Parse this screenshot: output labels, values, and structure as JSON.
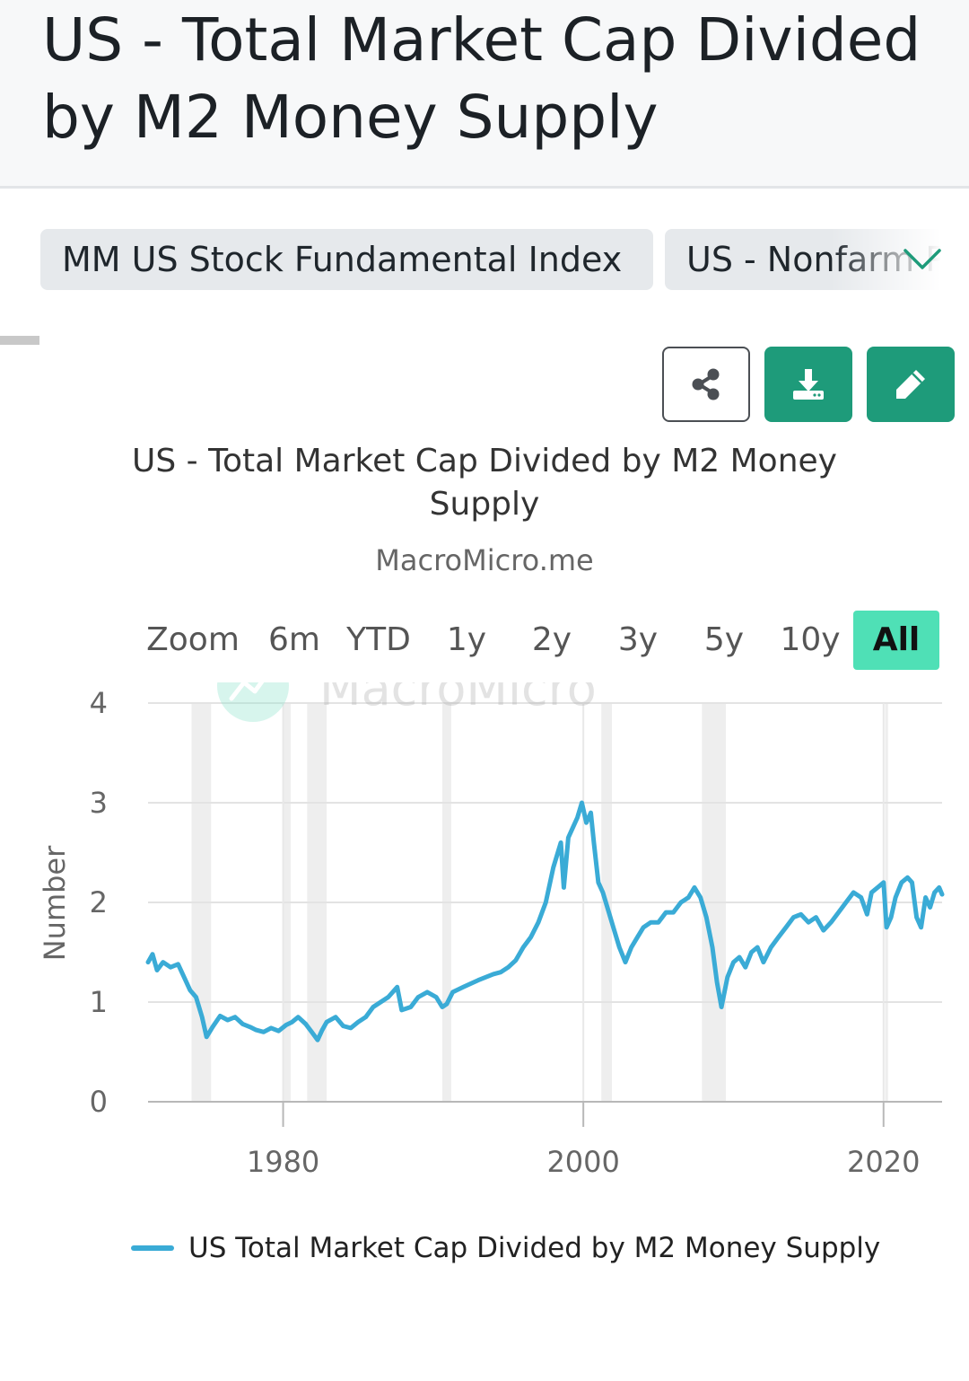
{
  "header": {
    "title": "US - Total Market Cap Divided by M2 Money Supply"
  },
  "tabs": [
    {
      "label": "MM US Stock Fundamental Index"
    },
    {
      "label": "US - Nonfarm Payrolls"
    }
  ],
  "toolbar": {
    "share_icon": "share-icon",
    "download_icon": "download-icon",
    "edit_icon": "edit-icon",
    "accent_color": "#1e9b7a"
  },
  "range_selector": {
    "zoom_label": "Zoom",
    "options": [
      "6m",
      "YTD",
      "1y",
      "2y",
      "3y",
      "5y",
      "10y",
      "All"
    ],
    "active": "All",
    "active_color": "#4fe0b6"
  },
  "watermark": "MacroMicro",
  "chart_data": {
    "type": "line",
    "title": "US - Total Market Cap Divided by M2 Money Supply",
    "subtitle": "MacroMicro.me",
    "xlabel": "",
    "ylabel": "Number",
    "xlim": [
      1971.0,
      2023.9
    ],
    "ylim": [
      0,
      4
    ],
    "y_ticks": [
      0,
      1,
      2,
      3,
      4
    ],
    "x_ticks": [
      1980,
      2000,
      2020
    ],
    "grid": true,
    "line_color": "#3aabd6",
    "recession_color": "#eeeeee",
    "recession_bands": [
      [
        1973.9,
        1975.2
      ],
      [
        1980.0,
        1980.5
      ],
      [
        1981.6,
        1982.9
      ],
      [
        1990.6,
        1991.2
      ],
      [
        2001.2,
        2001.9
      ],
      [
        2007.9,
        2009.5
      ],
      [
        2020.1,
        2020.3
      ]
    ],
    "series": [
      {
        "name": "US Total Market Cap Divided by M2 Money Supply",
        "x": [
          1971.0,
          1971.3,
          1971.6,
          1972.0,
          1972.5,
          1973.0,
          1973.4,
          1973.8,
          1974.2,
          1974.6,
          1974.9,
          1975.3,
          1975.8,
          1976.3,
          1976.8,
          1977.3,
          1977.8,
          1978.2,
          1978.7,
          1979.2,
          1979.7,
          1980.2,
          1980.6,
          1981.0,
          1981.5,
          1981.9,
          1982.3,
          1982.6,
          1982.9,
          1983.5,
          1984.0,
          1984.5,
          1985.0,
          1985.5,
          1986.0,
          1986.5,
          1987.0,
          1987.6,
          1987.9,
          1988.5,
          1989.0,
          1989.6,
          1990.2,
          1990.6,
          1990.9,
          1991.3,
          1992.0,
          1993.0,
          1994.0,
          1994.5,
          1995.0,
          1995.5,
          1996.0,
          1996.5,
          1997.0,
          1997.5,
          1998.0,
          1998.5,
          1998.7,
          1999.0,
          1999.3,
          1999.6,
          1999.9,
          2000.2,
          2000.5,
          2000.7,
          2001.0,
          2001.3,
          2001.7,
          2002.0,
          2002.4,
          2002.8,
          2003.2,
          2003.6,
          2004.0,
          2004.5,
          2005.0,
          2005.5,
          2006.0,
          2006.5,
          2007.0,
          2007.4,
          2007.8,
          2008.2,
          2008.6,
          2008.9,
          2009.2,
          2009.6,
          2010.0,
          2010.4,
          2010.8,
          2011.2,
          2011.6,
          2012.0,
          2012.5,
          2013.0,
          2013.5,
          2014.0,
          2014.5,
          2015.0,
          2015.5,
          2016.0,
          2016.5,
          2017.0,
          2017.5,
          2018.0,
          2018.5,
          2018.9,
          2019.2,
          2019.6,
          2020.0,
          2020.2,
          2020.5,
          2020.8,
          2021.2,
          2021.6,
          2021.9,
          2022.2,
          2022.5,
          2022.8,
          2023.1,
          2023.4,
          2023.7,
          2023.9
        ],
        "values": [
          1.4,
          1.48,
          1.32,
          1.4,
          1.35,
          1.38,
          1.25,
          1.12,
          1.05,
          0.85,
          0.65,
          0.75,
          0.86,
          0.82,
          0.85,
          0.78,
          0.75,
          0.72,
          0.7,
          0.74,
          0.71,
          0.77,
          0.8,
          0.85,
          0.78,
          0.7,
          0.62,
          0.72,
          0.8,
          0.85,
          0.76,
          0.74,
          0.8,
          0.85,
          0.95,
          1.0,
          1.05,
          1.15,
          0.92,
          0.95,
          1.05,
          1.1,
          1.05,
          0.95,
          0.98,
          1.1,
          1.15,
          1.22,
          1.28,
          1.3,
          1.35,
          1.42,
          1.55,
          1.65,
          1.8,
          2.0,
          2.35,
          2.6,
          2.15,
          2.65,
          2.75,
          2.85,
          3.0,
          2.8,
          2.9,
          2.6,
          2.2,
          2.1,
          1.9,
          1.75,
          1.55,
          1.4,
          1.55,
          1.65,
          1.75,
          1.8,
          1.8,
          1.9,
          1.9,
          2.0,
          2.05,
          2.15,
          2.05,
          1.85,
          1.55,
          1.2,
          0.95,
          1.25,
          1.4,
          1.45,
          1.35,
          1.5,
          1.55,
          1.4,
          1.55,
          1.65,
          1.75,
          1.85,
          1.88,
          1.8,
          1.85,
          1.72,
          1.8,
          1.9,
          2.0,
          2.1,
          2.05,
          1.88,
          2.1,
          2.15,
          2.2,
          1.75,
          1.85,
          2.05,
          2.2,
          2.25,
          2.2,
          1.85,
          1.75,
          2.05,
          1.95,
          2.1,
          2.15,
          2.08
        ]
      }
    ],
    "legend": "bottom-left"
  }
}
